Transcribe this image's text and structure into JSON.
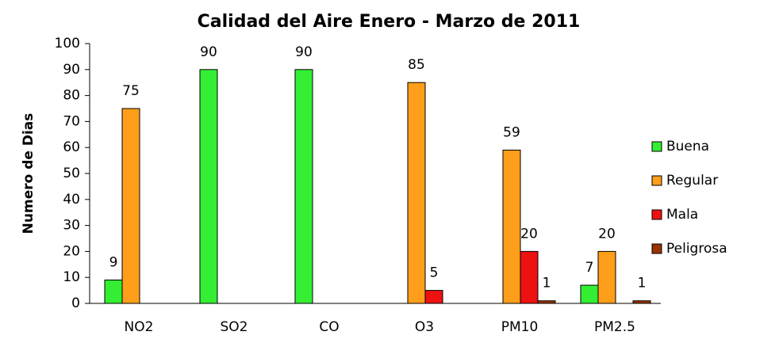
{
  "chart_data": {
    "type": "bar",
    "title": "Calidad del Aire  Enero - Marzo de 2011",
    "y_label": "Numero de Dias",
    "categories": [
      "NO2",
      "SO2",
      "CO",
      "O3",
      "PM10",
      "PM2.5"
    ],
    "series": [
      {
        "name": "Buena",
        "color": "#33ee33",
        "values": [
          9,
          90,
          90,
          null,
          null,
          7
        ]
      },
      {
        "name": "Regular",
        "color": "#ff9e1a",
        "values": [
          75,
          null,
          null,
          85,
          59,
          20
        ]
      },
      {
        "name": "Mala",
        "color": "#ee1111",
        "values": [
          null,
          null,
          null,
          5,
          20,
          null
        ]
      },
      {
        "name": "Peligrosa",
        "color": "#993300",
        "values": [
          null,
          null,
          null,
          null,
          1,
          1
        ]
      }
    ],
    "ylim": [
      0,
      100
    ],
    "yticks": [
      0,
      10,
      20,
      30,
      40,
      50,
      60,
      70,
      80,
      90,
      100
    ],
    "legend": "right"
  }
}
